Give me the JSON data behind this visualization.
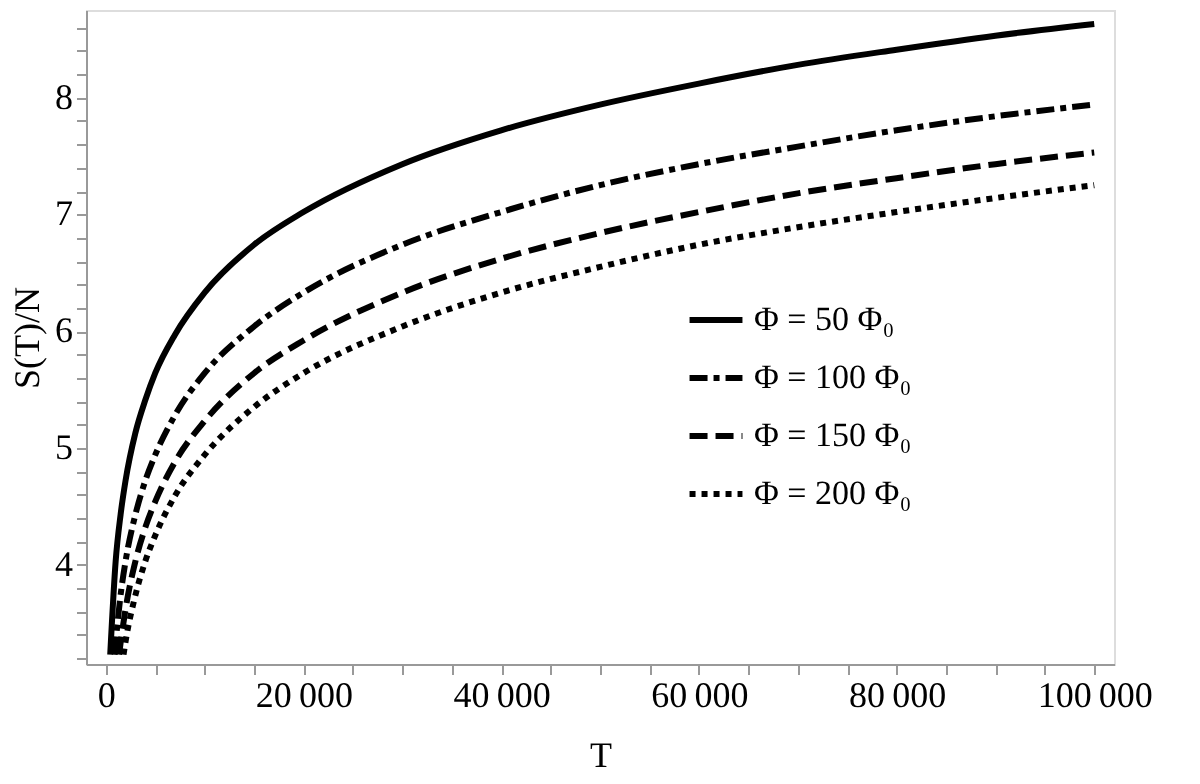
{
  "chart_data": {
    "type": "line",
    "xlabel": "T",
    "ylabel": "S(T)/N",
    "xlim": [
      -2000,
      102000
    ],
    "ylim": [
      3.15,
      8.75
    ],
    "xticks": [
      0,
      {
        "value": 5000,
        "label": null
      },
      {
        "value": 10000,
        "label": null
      },
      {
        "value": 15000,
        "label": null
      },
      20000,
      {
        "value": 25000,
        "label": null
      },
      {
        "value": 30000,
        "label": null
      },
      {
        "value": 35000,
        "label": null
      },
      40000,
      {
        "value": 45000,
        "label": null
      },
      {
        "value": 50000,
        "label": null
      },
      {
        "value": 55000,
        "label": null
      },
      60000,
      {
        "value": 65000,
        "label": null
      },
      {
        "value": 70000,
        "label": null
      },
      {
        "value": 75000,
        "label": null
      },
      80000,
      {
        "value": 85000,
        "label": null
      },
      {
        "value": 90000,
        "label": null
      },
      {
        "value": 95000,
        "label": null
      },
      100000
    ],
    "yticks": [
      {
        "value": 3.2,
        "label": null
      },
      {
        "value": 3.4,
        "label": null
      },
      {
        "value": 3.6,
        "label": null
      },
      {
        "value": 3.8,
        "label": null
      },
      4,
      {
        "value": 4.2,
        "label": null
      },
      {
        "value": 4.4,
        "label": null
      },
      {
        "value": 4.6,
        "label": null
      },
      {
        "value": 4.8,
        "label": null
      },
      5,
      {
        "value": 5.2,
        "label": null
      },
      {
        "value": 5.4,
        "label": null
      },
      {
        "value": 5.6,
        "label": null
      },
      {
        "value": 5.8,
        "label": null
      },
      6,
      {
        "value": 6.2,
        "label": null
      },
      {
        "value": 6.4,
        "label": null
      },
      {
        "value": 6.6,
        "label": null
      },
      {
        "value": 6.8,
        "label": null
      },
      7,
      {
        "value": 7.2,
        "label": null
      },
      {
        "value": 7.4,
        "label": null
      },
      {
        "value": 7.6,
        "label": null
      },
      {
        "value": 7.8,
        "label": null
      },
      8,
      {
        "value": 8.2,
        "label": null
      },
      {
        "value": 8.4,
        "label": null
      },
      {
        "value": 8.6,
        "label": null
      }
    ],
    "grid": false,
    "legend": "right",
    "marker": "none",
    "series": [
      {
        "name": "Φ = 50 Φ₀",
        "color": "#000000",
        "line_style": "solid",
        "x": [
          450,
          1000,
          1500,
          2000,
          3000,
          4000,
          5000,
          7000,
          10000,
          15000,
          20000,
          30000,
          40000,
          50000,
          60000,
          70000,
          80000,
          90000,
          100000
        ],
        "values": [
          3.23,
          4.03,
          4.43,
          4.72,
          5.13,
          5.41,
          5.64,
          5.97,
          6.33,
          6.74,
          7.02,
          7.43,
          7.72,
          7.94,
          8.12,
          8.28,
          8.41,
          8.53,
          8.63
        ]
      },
      {
        "name": "Φ = 100 Φ₀",
        "color": "#000000",
        "line_style": "dashdot",
        "x": [
          900,
          1000,
          1500,
          2000,
          3000,
          4000,
          5000,
          7000,
          10000,
          15000,
          20000,
          30000,
          40000,
          50000,
          60000,
          70000,
          80000,
          90000,
          100000
        ],
        "values": [
          3.23,
          3.33,
          3.74,
          4.03,
          4.43,
          4.72,
          4.94,
          5.28,
          5.64,
          6.04,
          6.33,
          6.74,
          7.02,
          7.25,
          7.43,
          7.58,
          7.72,
          7.84,
          7.94
        ]
      },
      {
        "name": "Φ = 150 Φ₀",
        "color": "#000000",
        "line_style": "dashed",
        "x": [
          1350,
          1500,
          2000,
          3000,
          4000,
          5000,
          7000,
          10000,
          15000,
          20000,
          30000,
          40000,
          50000,
          60000,
          70000,
          80000,
          90000,
          100000
        ],
        "values": [
          3.23,
          3.33,
          3.62,
          4.03,
          4.32,
          4.54,
          4.88,
          5.23,
          5.64,
          5.92,
          6.33,
          6.62,
          6.84,
          7.02,
          7.18,
          7.31,
          7.43,
          7.53
        ]
      },
      {
        "name": "Φ = 200 Φ₀",
        "color": "#000000",
        "line_style": "dotted",
        "x": [
          1800,
          2000,
          3000,
          4000,
          5000,
          7000,
          10000,
          15000,
          20000,
          30000,
          40000,
          50000,
          60000,
          70000,
          80000,
          90000,
          100000
        ],
        "values": [
          3.23,
          3.34,
          3.74,
          4.03,
          4.25,
          4.59,
          4.94,
          5.35,
          5.64,
          6.04,
          6.33,
          6.55,
          6.74,
          6.89,
          7.02,
          7.14,
          7.25
        ]
      }
    ]
  }
}
